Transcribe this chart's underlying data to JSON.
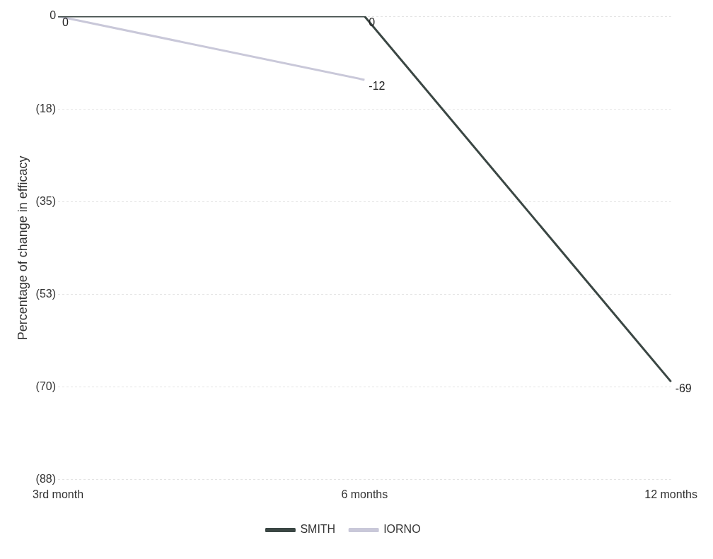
{
  "chart_data": {
    "type": "line",
    "ylabel": "Percentage of change in efficacy",
    "categories": [
      "3rd month",
      "6 months",
      "12 months"
    ],
    "series": [
      {
        "name": "SMITH",
        "color": "#3b4744",
        "values": [
          0,
          0,
          -69
        ],
        "value_labels": [
          "0",
          "0",
          "-69"
        ]
      },
      {
        "name": "IORNO",
        "color": "#c9c8d9",
        "values": [
          0,
          -12,
          null
        ],
        "value_labels": [
          null,
          "-12",
          null
        ]
      }
    ],
    "ylim": [
      -87.5,
      0
    ],
    "yticks": [
      0,
      {
        "value": -17.5,
        "label": "(18)"
      },
      {
        "value": -35,
        "label": "(35)"
      },
      {
        "value": -52.5,
        "label": "(53)"
      },
      {
        "value": -70,
        "label": "(70)"
      },
      {
        "value": -87.5,
        "label": "(88)"
      }
    ],
    "grid": "y",
    "legend": "bottom",
    "marker": "none",
    "line_style": "solid"
  }
}
